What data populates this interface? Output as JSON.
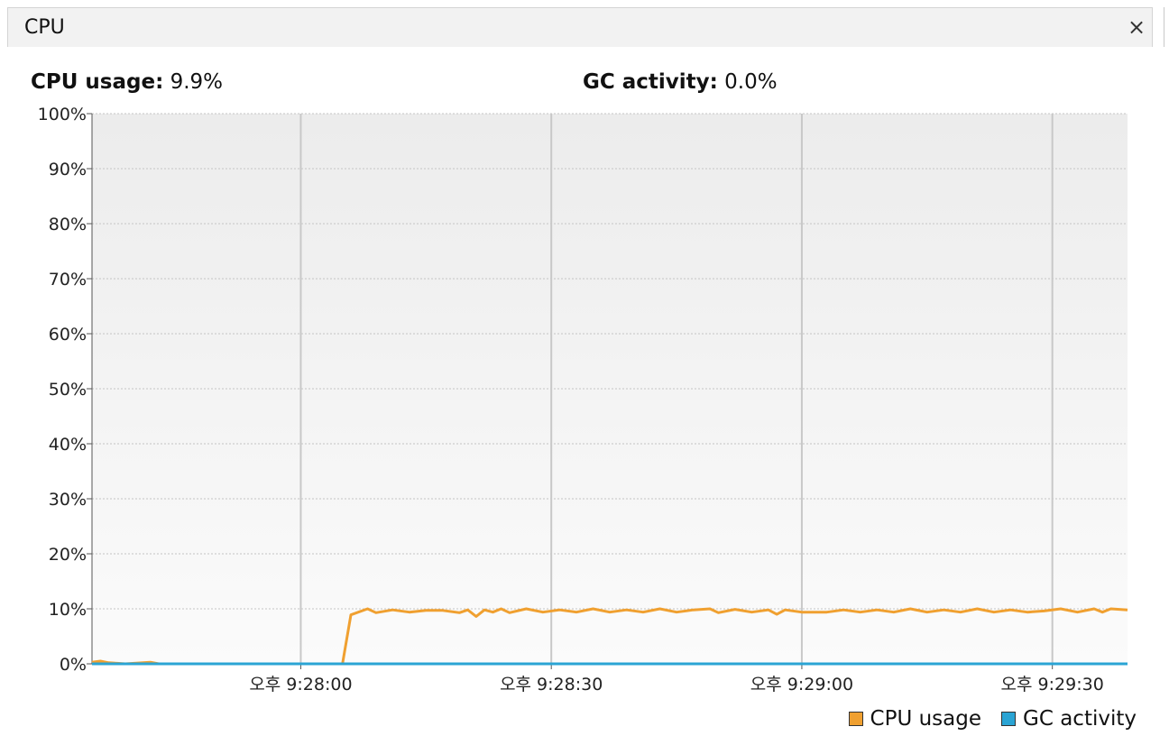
{
  "tab": {
    "title": "CPU",
    "close_label": "×"
  },
  "stats": {
    "cpu_label": "CPU usage:",
    "cpu_value": "9.9%",
    "gc_label": "GC activity:",
    "gc_value": "0.0%"
  },
  "legend": {
    "cpu_label": "CPU usage",
    "gc_label": "GC activity"
  },
  "colors": {
    "cpu": "#f0a030",
    "gc": "#2aa4d4"
  },
  "chart_data": {
    "type": "line",
    "title": "",
    "xlabel": "",
    "ylabel": "",
    "ylim": [
      0,
      100
    ],
    "y_ticks": [
      0,
      10,
      20,
      30,
      40,
      50,
      60,
      70,
      80,
      90,
      100
    ],
    "y_tick_labels": [
      "0%",
      "10%",
      "20%",
      "30%",
      "40%",
      "50%",
      "60%",
      "70%",
      "80%",
      "90%",
      "100%"
    ],
    "x_unit": "seconds",
    "xlim": [
      "오후 9:27:35",
      "오후 9:29:39"
    ],
    "x_ticks": [
      "오후 9:28:00",
      "오후 9:28:30",
      "오후 9:29:00",
      "오후 9:29:30"
    ],
    "grid": true,
    "legend_position": "bottom-right",
    "series": [
      {
        "name": "CPU usage",
        "points": [
          [
            "오후 9:27:35",
            0.3
          ],
          [
            "오후 9:27:36",
            0.5
          ],
          [
            "오후 9:27:37",
            0.2
          ],
          [
            "오후 9:27:38",
            0.1
          ],
          [
            "오후 9:27:39",
            0.0
          ],
          [
            "오후 9:27:42",
            0.3
          ],
          [
            "오후 9:27:43",
            0.0
          ],
          [
            "오후 9:28:04",
            0.0
          ],
          [
            "오후 9:28:05",
            0.0
          ],
          [
            "오후 9:28:06",
            8.9
          ],
          [
            "오후 9:28:08",
            10.0
          ],
          [
            "오후 9:28:09",
            9.3
          ],
          [
            "오후 9:28:11",
            9.8
          ],
          [
            "오후 9:28:13",
            9.4
          ],
          [
            "오후 9:28:15",
            9.7
          ],
          [
            "오후 9:28:17",
            9.7
          ],
          [
            "오후 9:28:19",
            9.3
          ],
          [
            "오후 9:28:20",
            9.8
          ],
          [
            "오후 9:28:21",
            8.6
          ],
          [
            "오후 9:28:22",
            9.8
          ],
          [
            "오후 9:28:23",
            9.4
          ],
          [
            "오후 9:28:24",
            10.0
          ],
          [
            "오후 9:28:25",
            9.3
          ],
          [
            "오후 9:28:27",
            10.0
          ],
          [
            "오후 9:28:29",
            9.4
          ],
          [
            "오후 9:28:31",
            9.8
          ],
          [
            "오후 9:28:33",
            9.4
          ],
          [
            "오후 9:28:35",
            10.0
          ],
          [
            "오후 9:28:37",
            9.4
          ],
          [
            "오후 9:28:39",
            9.8
          ],
          [
            "오후 9:28:41",
            9.4
          ],
          [
            "오후 9:28:43",
            10.0
          ],
          [
            "오후 9:28:45",
            9.4
          ],
          [
            "오후 9:28:47",
            9.8
          ],
          [
            "오후 9:28:49",
            10.0
          ],
          [
            "오후 9:28:50",
            9.3
          ],
          [
            "오후 9:28:52",
            9.9
          ],
          [
            "오후 9:28:54",
            9.4
          ],
          [
            "오후 9:28:56",
            9.8
          ],
          [
            "오후 9:28:57",
            9.0
          ],
          [
            "오후 9:28:58",
            9.8
          ],
          [
            "오후 9:29:00",
            9.4
          ],
          [
            "오후 9:29:03",
            9.4
          ],
          [
            "오후 9:29:05",
            9.8
          ],
          [
            "오후 9:29:07",
            9.4
          ],
          [
            "오후 9:29:09",
            9.8
          ],
          [
            "오후 9:29:11",
            9.4
          ],
          [
            "오후 9:29:13",
            10.0
          ],
          [
            "오후 9:29:15",
            9.4
          ],
          [
            "오후 9:29:17",
            9.8
          ],
          [
            "오후 9:29:19",
            9.4
          ],
          [
            "오후 9:29:21",
            10.0
          ],
          [
            "오후 9:29:23",
            9.4
          ],
          [
            "오후 9:29:25",
            9.8
          ],
          [
            "오후 9:29:27",
            9.4
          ],
          [
            "오후 9:29:29",
            9.6
          ],
          [
            "오후 9:29:31",
            10.0
          ],
          [
            "오후 9:29:33",
            9.4
          ],
          [
            "오후 9:29:35",
            10.0
          ],
          [
            "오후 9:29:36",
            9.4
          ],
          [
            "오후 9:29:37",
            10.0
          ],
          [
            "오후 9:29:39",
            9.8
          ]
        ]
      },
      {
        "name": "GC activity",
        "points": [
          [
            "오후 9:27:35",
            0.0
          ],
          [
            "오후 9:29:39",
            0.0
          ]
        ]
      }
    ]
  }
}
